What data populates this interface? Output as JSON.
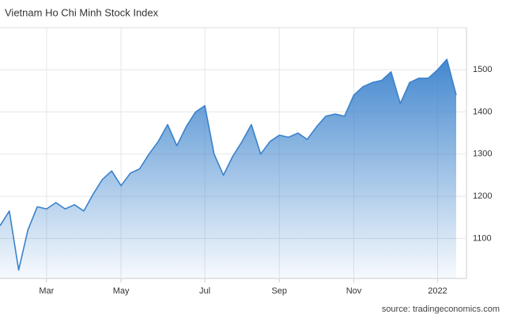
{
  "chart_data": {
    "type": "area",
    "title": "Vietnam Ho Chi Minh Stock Index",
    "source": "source: tradingeconomics.com",
    "categories": [
      null,
      null,
      null,
      null,
      null,
      "Mar",
      null,
      null,
      null,
      null,
      null,
      null,
      null,
      "May",
      null,
      null,
      null,
      null,
      null,
      null,
      null,
      null,
      "Jul",
      null,
      null,
      null,
      null,
      null,
      null,
      null,
      "Sep",
      null,
      null,
      null,
      null,
      null,
      null,
      null,
      "Nov",
      null,
      null,
      null,
      null,
      null,
      null,
      null,
      null,
      "2022",
      null,
      null
    ],
    "values": [
      1130,
      1165,
      1025,
      1120,
      1175,
      1170,
      1185,
      1170,
      1180,
      1165,
      1205,
      1240,
      1260,
      1225,
      1255,
      1265,
      1300,
      1330,
      1370,
      1320,
      1365,
      1400,
      1415,
      1300,
      1250,
      1295,
      1330,
      1370,
      1300,
      1330,
      1345,
      1340,
      1350,
      1335,
      1365,
      1390,
      1395,
      1390,
      1440,
      1460,
      1470,
      1475,
      1495,
      1420,
      1470,
      1480,
      1480,
      1500,
      1525,
      1440
    ],
    "color": "#3a82cc",
    "ylim": [
      1005,
      1600
    ],
    "yticks": [
      1100,
      1200,
      1300,
      1400,
      1500
    ],
    "grid": true
  }
}
